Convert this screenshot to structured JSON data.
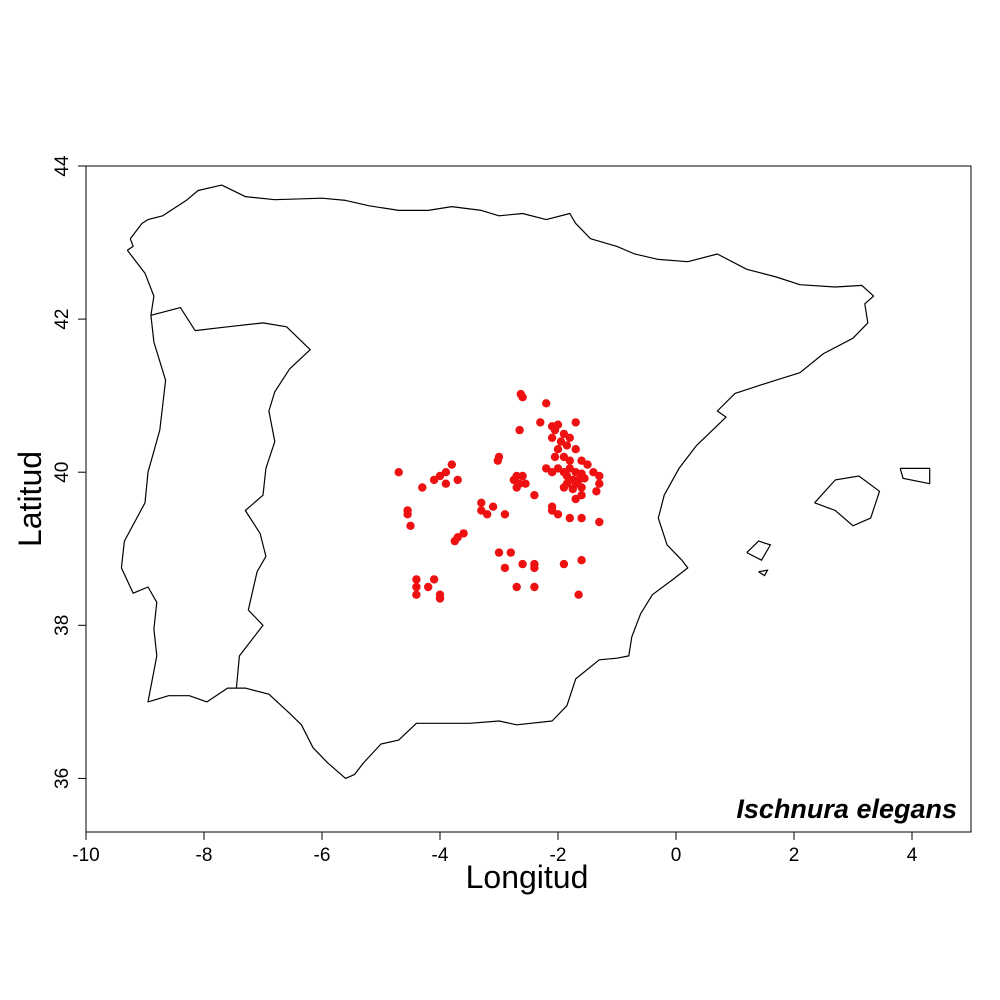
{
  "chart_data": {
    "type": "scatter",
    "title": "",
    "species_label": "Ischnura elegans",
    "xlabel": "Longitud",
    "ylabel": "Latitud",
    "xlim": [
      -10,
      5
    ],
    "ylim": [
      35.3,
      44
    ],
    "x_ticks": [
      -10,
      -8,
      -6,
      -4,
      -2,
      0,
      2,
      4
    ],
    "y_ticks": [
      36,
      38,
      40,
      42,
      44
    ],
    "point_color": "#ee1111",
    "grid": false,
    "coastline": [
      [
        -9.3,
        42.9
      ],
      [
        -9.2,
        42.95
      ],
      [
        -9.25,
        43.05
      ],
      [
        -9.05,
        43.25
      ],
      [
        -8.95,
        43.3
      ],
      [
        -8.7,
        43.35
      ],
      [
        -8.3,
        43.55
      ],
      [
        -8.1,
        43.68
      ],
      [
        -7.7,
        43.75
      ],
      [
        -7.3,
        43.6
      ],
      [
        -6.8,
        43.56
      ],
      [
        -6.0,
        43.58
      ],
      [
        -5.6,
        43.55
      ],
      [
        -5.2,
        43.48
      ],
      [
        -4.7,
        43.42
      ],
      [
        -4.2,
        43.42
      ],
      [
        -3.8,
        43.47
      ],
      [
        -3.3,
        43.42
      ],
      [
        -3.0,
        43.35
      ],
      [
        -2.6,
        43.38
      ],
      [
        -2.2,
        43.3
      ],
      [
        -1.8,
        43.38
      ],
      [
        -1.7,
        43.25
      ],
      [
        -1.45,
        43.05
      ],
      [
        -1.0,
        42.95
      ],
      [
        -0.7,
        42.85
      ],
      [
        -0.3,
        42.78
      ],
      [
        0.2,
        42.75
      ],
      [
        0.7,
        42.85
      ],
      [
        1.2,
        42.65
      ],
      [
        1.7,
        42.55
      ],
      [
        2.1,
        42.45
      ],
      [
        2.7,
        42.42
      ],
      [
        3.15,
        42.44
      ],
      [
        3.35,
        42.3
      ],
      [
        3.2,
        42.2
      ],
      [
        3.25,
        41.95
      ],
      [
        3.0,
        41.75
      ],
      [
        2.5,
        41.55
      ],
      [
        2.1,
        41.3
      ],
      [
        1.6,
        41.18
      ],
      [
        1.0,
        41.03
      ],
      [
        0.7,
        40.8
      ],
      [
        0.85,
        40.72
      ],
      [
        0.35,
        40.35
      ],
      [
        0.05,
        40.05
      ],
      [
        -0.2,
        39.7
      ],
      [
        -0.3,
        39.4
      ],
      [
        -0.15,
        39.05
      ],
      [
        0.1,
        38.85
      ],
      [
        0.2,
        38.75
      ],
      [
        -0.05,
        38.6
      ],
      [
        -0.4,
        38.4
      ],
      [
        -0.6,
        38.15
      ],
      [
        -0.75,
        37.85
      ],
      [
        -0.8,
        37.6
      ],
      [
        -1.0,
        37.57
      ],
      [
        -1.3,
        37.55
      ],
      [
        -1.7,
        37.3
      ],
      [
        -1.85,
        36.95
      ],
      [
        -2.1,
        36.75
      ],
      [
        -2.7,
        36.7
      ],
      [
        -3.0,
        36.75
      ],
      [
        -3.5,
        36.72
      ],
      [
        -4.0,
        36.72
      ],
      [
        -4.4,
        36.72
      ],
      [
        -4.7,
        36.5
      ],
      [
        -5.0,
        36.45
      ],
      [
        -5.3,
        36.2
      ],
      [
        -5.45,
        36.05
      ],
      [
        -5.6,
        36.0
      ],
      [
        -5.9,
        36.2
      ],
      [
        -6.15,
        36.4
      ],
      [
        -6.35,
        36.7
      ],
      [
        -6.55,
        36.85
      ],
      [
        -6.9,
        37.1
      ],
      [
        -7.3,
        37.18
      ],
      [
        -7.6,
        37.18
      ],
      [
        -7.95,
        37.0
      ],
      [
        -8.25,
        37.08
      ],
      [
        -8.6,
        37.08
      ],
      [
        -8.95,
        37.0
      ],
      [
        -8.8,
        37.6
      ],
      [
        -8.85,
        37.95
      ],
      [
        -8.8,
        38.3
      ],
      [
        -8.95,
        38.5
      ],
      [
        -9.2,
        38.42
      ],
      [
        -9.4,
        38.75
      ],
      [
        -9.35,
        39.1
      ],
      [
        -9.0,
        39.6
      ],
      [
        -8.95,
        40.0
      ],
      [
        -8.75,
        40.55
      ],
      [
        -8.65,
        41.2
      ],
      [
        -8.85,
        41.7
      ],
      [
        -8.9,
        42.05
      ],
      [
        -8.85,
        42.3
      ],
      [
        -9.0,
        42.6
      ],
      [
        -9.3,
        42.9
      ]
    ],
    "border": [
      [
        -8.9,
        42.05
      ],
      [
        -8.4,
        42.15
      ],
      [
        -8.15,
        41.85
      ],
      [
        -7.6,
        41.9
      ],
      [
        -7.0,
        41.95
      ],
      [
        -6.6,
        41.9
      ],
      [
        -6.2,
        41.6
      ],
      [
        -6.55,
        41.35
      ],
      [
        -6.8,
        41.05
      ],
      [
        -6.9,
        40.8
      ],
      [
        -6.8,
        40.4
      ],
      [
        -6.95,
        40.05
      ],
      [
        -7.0,
        39.7
      ],
      [
        -7.3,
        39.5
      ],
      [
        -7.05,
        39.2
      ],
      [
        -6.95,
        38.9
      ],
      [
        -7.1,
        38.7
      ],
      [
        -7.25,
        38.2
      ],
      [
        -7.0,
        38.0
      ],
      [
        -7.4,
        37.6
      ],
      [
        -7.45,
        37.18
      ]
    ],
    "islands": [
      [
        [
          2.35,
          39.6
        ],
        [
          2.7,
          39.9
        ],
        [
          3.1,
          39.95
        ],
        [
          3.45,
          39.75
        ],
        [
          3.3,
          39.4
        ],
        [
          3.0,
          39.3
        ],
        [
          2.7,
          39.5
        ],
        [
          2.35,
          39.6
        ]
      ],
      [
        [
          3.8,
          40.05
        ],
        [
          4.3,
          40.05
        ],
        [
          4.3,
          39.85
        ],
        [
          3.85,
          39.92
        ],
        [
          3.8,
          40.05
        ]
      ],
      [
        [
          1.2,
          38.95
        ],
        [
          1.4,
          39.1
        ],
        [
          1.6,
          39.05
        ],
        [
          1.45,
          38.85
        ],
        [
          1.2,
          38.95
        ]
      ],
      [
        [
          1.4,
          38.7
        ],
        [
          1.55,
          38.72
        ],
        [
          1.5,
          38.65
        ],
        [
          1.4,
          38.7
        ]
      ]
    ],
    "points": [
      [
        -2.63,
        41.02
      ],
      [
        -2.6,
        40.98
      ],
      [
        -2.2,
        40.9
      ],
      [
        -1.7,
        40.65
      ],
      [
        -2.3,
        40.65
      ],
      [
        -2.1,
        40.6
      ],
      [
        -2.0,
        40.62
      ],
      [
        -2.05,
        40.55
      ],
      [
        -2.65,
        40.55
      ],
      [
        -1.9,
        40.5
      ],
      [
        -2.1,
        40.45
      ],
      [
        -1.8,
        40.45
      ],
      [
        -1.95,
        40.4
      ],
      [
        -1.85,
        40.35
      ],
      [
        -1.7,
        40.3
      ],
      [
        -2.0,
        40.3
      ],
      [
        -1.9,
        40.2
      ],
      [
        -2.05,
        40.2
      ],
      [
        -1.8,
        40.15
      ],
      [
        -1.6,
        40.15
      ],
      [
        -1.5,
        40.1
      ],
      [
        -3.0,
        40.2
      ],
      [
        -3.02,
        40.15
      ],
      [
        -2.0,
        40.05
      ],
      [
        -2.2,
        40.05
      ],
      [
        -2.1,
        40.0
      ],
      [
        -1.9,
        40.0
      ],
      [
        -1.8,
        40.05
      ],
      [
        -1.7,
        40.0
      ],
      [
        -1.6,
        39.98
      ],
      [
        -1.4,
        40.0
      ],
      [
        -1.3,
        39.95
      ],
      [
        -1.85,
        39.95
      ],
      [
        -1.75,
        39.9
      ],
      [
        -1.65,
        39.9
      ],
      [
        -1.55,
        39.92
      ],
      [
        -1.85,
        39.85
      ],
      [
        -1.7,
        39.85
      ],
      [
        -1.9,
        39.8
      ],
      [
        -1.6,
        39.8
      ],
      [
        -1.75,
        39.78
      ],
      [
        -1.3,
        39.85
      ],
      [
        -1.35,
        39.75
      ],
      [
        -2.7,
        39.95
      ],
      [
        -2.6,
        39.95
      ],
      [
        -2.75,
        39.9
      ],
      [
        -2.65,
        39.85
      ],
      [
        -2.55,
        39.85
      ],
      [
        -2.7,
        39.8
      ],
      [
        -3.8,
        40.1
      ],
      [
        -3.9,
        40.0
      ],
      [
        -4.0,
        39.95
      ],
      [
        -4.1,
        39.9
      ],
      [
        -3.9,
        39.85
      ],
      [
        -3.7,
        39.9
      ],
      [
        -4.3,
        39.8
      ],
      [
        -4.7,
        40.0
      ],
      [
        -2.4,
        39.7
      ],
      [
        -1.6,
        39.7
      ],
      [
        -1.7,
        39.65
      ],
      [
        -2.1,
        39.55
      ],
      [
        -2.1,
        39.5
      ],
      [
        -2.0,
        39.45
      ],
      [
        -1.8,
        39.4
      ],
      [
        -1.6,
        39.4
      ],
      [
        -1.3,
        39.35
      ],
      [
        -3.3,
        39.6
      ],
      [
        -3.3,
        39.5
      ],
      [
        -3.2,
        39.45
      ],
      [
        -3.1,
        39.55
      ],
      [
        -2.9,
        39.45
      ],
      [
        -4.55,
        39.5
      ],
      [
        -4.55,
        39.45
      ],
      [
        -4.5,
        39.3
      ],
      [
        -3.7,
        39.15
      ],
      [
        -3.75,
        39.1
      ],
      [
        -3.6,
        39.2
      ],
      [
        -3.0,
        38.95
      ],
      [
        -2.8,
        38.95
      ],
      [
        -2.6,
        38.8
      ],
      [
        -2.4,
        38.8
      ],
      [
        -2.4,
        38.75
      ],
      [
        -2.9,
        38.75
      ],
      [
        -1.9,
        38.8
      ],
      [
        -1.6,
        38.85
      ],
      [
        -2.7,
        38.5
      ],
      [
        -2.4,
        38.5
      ],
      [
        -1.65,
        38.4
      ],
      [
        -4.4,
        38.6
      ],
      [
        -4.4,
        38.5
      ],
      [
        -4.4,
        38.4
      ],
      [
        -4.1,
        38.6
      ],
      [
        -4.2,
        38.5
      ],
      [
        -4.0,
        38.4
      ],
      [
        -4.0,
        38.35
      ]
    ]
  }
}
